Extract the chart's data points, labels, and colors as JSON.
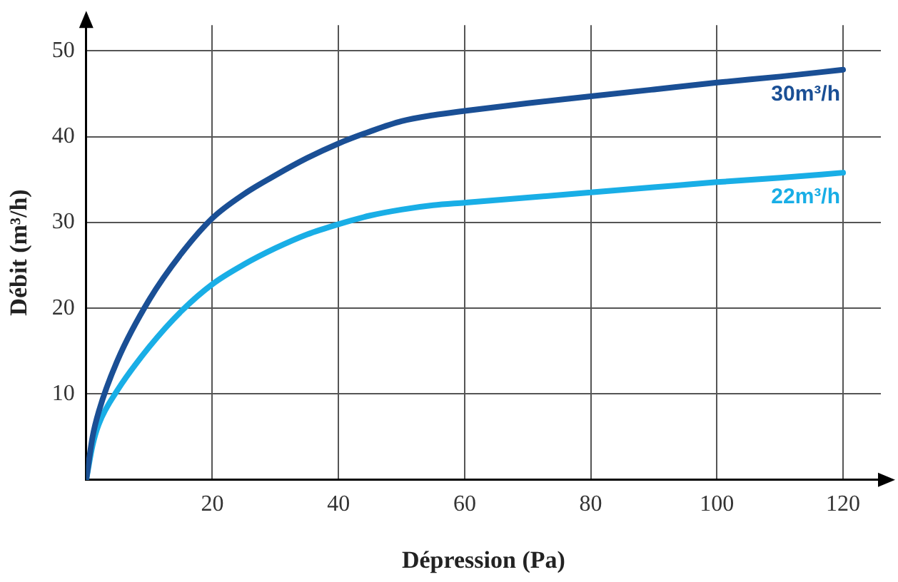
{
  "chart_data": {
    "type": "line",
    "xlabel": "Dépression (Pa)",
    "ylabel": "Débit (m³/h)",
    "xlim": [
      0,
      126
    ],
    "ylim": [
      0,
      53
    ],
    "xticks": [
      20,
      40,
      60,
      80,
      100,
      120
    ],
    "yticks": [
      10,
      20,
      30,
      40,
      50
    ],
    "grid": true,
    "legend": false,
    "marker": "none",
    "line_style": "solid",
    "series": [
      {
        "name": "30m³/h",
        "color": "#1a4f95",
        "x": [
          0,
          1,
          2,
          5,
          10,
          15,
          20,
          25,
          30,
          35,
          40,
          45,
          50,
          55,
          60,
          70,
          80,
          90,
          100,
          110,
          120
        ],
        "values": [
          0,
          5,
          8,
          14,
          21,
          26.3,
          30.5,
          33.3,
          35.5,
          37.5,
          39.2,
          40.6,
          41.8,
          42.5,
          43,
          43.9,
          44.7,
          45.5,
          46.3,
          47,
          47.8
        ]
      },
      {
        "name": "22m³/h",
        "color": "#19aee6",
        "x": [
          0,
          1,
          2,
          5,
          10,
          15,
          20,
          25,
          30,
          35,
          40,
          45,
          50,
          55,
          60,
          70,
          80,
          90,
          100,
          110,
          120
        ],
        "values": [
          0,
          4,
          6.5,
          10.5,
          15.5,
          19.6,
          22.8,
          25.1,
          27,
          28.6,
          29.8,
          30.8,
          31.5,
          32,
          32.3,
          32.9,
          33.5,
          34.1,
          34.7,
          35.2,
          35.8
        ]
      }
    ]
  }
}
